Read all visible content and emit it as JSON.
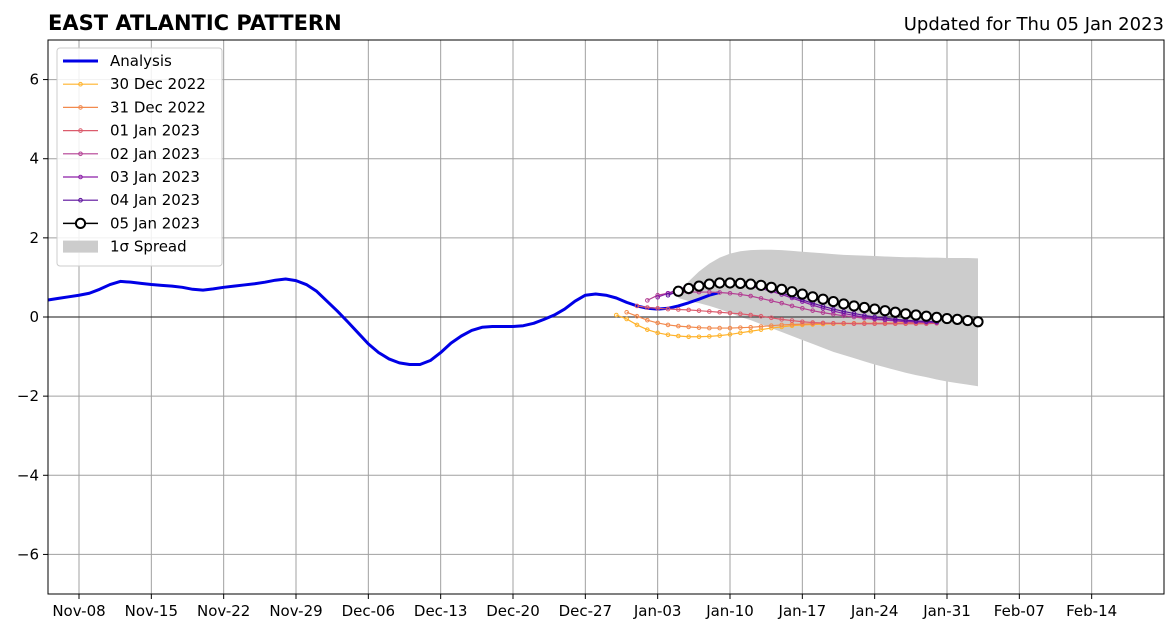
{
  "chart_data": {
    "type": "line",
    "title": "EAST ATLANTIC PATTERN",
    "subtitle": "Updated for Thu 05 Jan 2023",
    "xlabel": "",
    "ylabel": "",
    "x_start": "2022-11-05",
    "xlim": [
      "2022-11-05",
      "2023-02-21"
    ],
    "ylim": [
      -7,
      7
    ],
    "grid": true,
    "legend_position": "top-left",
    "x_ticks": [
      {
        "date": "2022-11-08",
        "label": "Nov-08"
      },
      {
        "date": "2022-11-15",
        "label": "Nov-15"
      },
      {
        "date": "2022-11-22",
        "label": "Nov-22"
      },
      {
        "date": "2022-11-29",
        "label": "Nov-29"
      },
      {
        "date": "2022-12-06",
        "label": "Dec-06"
      },
      {
        "date": "2022-12-13",
        "label": "Dec-13"
      },
      {
        "date": "2022-12-20",
        "label": "Dec-20"
      },
      {
        "date": "2022-12-27",
        "label": "Dec-27"
      },
      {
        "date": "2023-01-03",
        "label": "Jan-03"
      },
      {
        "date": "2023-01-10",
        "label": "Jan-10"
      },
      {
        "date": "2023-01-17",
        "label": "Jan-17"
      },
      {
        "date": "2023-01-24",
        "label": "Jan-24"
      },
      {
        "date": "2023-01-31",
        "label": "Jan-31"
      },
      {
        "date": "2023-02-07",
        "label": "Feb-07"
      },
      {
        "date": "2023-02-14",
        "label": "Feb-14"
      }
    ],
    "y_ticks": [
      {
        "value": -6,
        "label": "−6"
      },
      {
        "value": -4,
        "label": "−4"
      },
      {
        "value": -2,
        "label": "−2"
      },
      {
        "value": 0,
        "label": "0"
      },
      {
        "value": 2,
        "label": "2"
      },
      {
        "value": 4,
        "label": "4"
      },
      {
        "value": 6,
        "label": "6"
      }
    ],
    "series": [
      {
        "name": "Analysis",
        "color": "#0000e6",
        "style": "line",
        "start": "2022-11-05",
        "values": [
          0.43,
          0.47,
          0.51,
          0.55,
          0.6,
          0.7,
          0.82,
          0.9,
          0.88,
          0.85,
          0.82,
          0.8,
          0.78,
          0.75,
          0.7,
          0.68,
          0.71,
          0.75,
          0.78,
          0.81,
          0.84,
          0.88,
          0.93,
          0.96,
          0.92,
          0.82,
          0.65,
          0.4,
          0.15,
          -0.12,
          -0.4,
          -0.68,
          -0.9,
          -1.06,
          -1.16,
          -1.2,
          -1.2,
          -1.1,
          -0.9,
          -0.66,
          -0.48,
          -0.34,
          -0.26,
          -0.24,
          -0.24,
          -0.24,
          -0.22,
          -0.16,
          -0.06,
          0.05,
          0.2,
          0.4,
          0.55,
          0.58,
          0.55,
          0.48,
          0.37,
          0.28,
          0.22,
          0.2,
          0.22,
          0.28,
          0.36,
          0.45,
          0.55,
          0.62
        ]
      },
      {
        "name": "30 Dec 2022",
        "color": "#ffb32b",
        "style": "dots",
        "start": "2022-12-30",
        "values": [
          0.05,
          -0.05,
          -0.2,
          -0.32,
          -0.4,
          -0.45,
          -0.48,
          -0.5,
          -0.5,
          -0.49,
          -0.47,
          -0.44,
          -0.4,
          -0.36,
          -0.32,
          -0.28,
          -0.25,
          -0.22,
          -0.2,
          -0.19,
          -0.18,
          -0.17,
          -0.17,
          -0.16,
          -0.16,
          -0.16,
          -0.16,
          -0.16,
          -0.16,
          -0.16,
          -0.15
        ]
      },
      {
        "name": "31 Dec 2022",
        "color": "#f28a4e",
        "style": "dots",
        "start": "2022-12-31",
        "values": [
          0.12,
          0.02,
          -0.08,
          -0.15,
          -0.2,
          -0.23,
          -0.25,
          -0.27,
          -0.28,
          -0.28,
          -0.28,
          -0.27,
          -0.26,
          -0.24,
          -0.22,
          -0.2,
          -0.19,
          -0.18,
          -0.17,
          -0.16,
          -0.16,
          -0.16,
          -0.16,
          -0.16,
          -0.16,
          -0.15,
          -0.15,
          -0.14,
          -0.14,
          -0.14
        ]
      },
      {
        "name": "01 Jan 2023",
        "color": "#db5b6c",
        "style": "dots",
        "start": "2023-01-01",
        "values": [
          0.28,
          0.24,
          0.22,
          0.2,
          0.19,
          0.18,
          0.16,
          0.14,
          0.12,
          0.1,
          0.08,
          0.05,
          0.02,
          -0.02,
          -0.06,
          -0.09,
          -0.12,
          -0.14,
          -0.15,
          -0.16,
          -0.16,
          -0.17,
          -0.17,
          -0.17,
          -0.17,
          -0.17,
          -0.17,
          -0.17,
          -0.17,
          -0.16
        ]
      },
      {
        "name": "02 Jan 2023",
        "color": "#b33f93",
        "style": "dots",
        "start": "2023-01-02",
        "values": [
          0.42,
          0.55,
          0.6,
          0.62,
          0.63,
          0.63,
          0.63,
          0.62,
          0.6,
          0.57,
          0.53,
          0.47,
          0.41,
          0.35,
          0.28,
          0.22,
          0.16,
          0.11,
          0.07,
          0.03,
          0.0,
          -0.03,
          -0.06,
          -0.08,
          -0.1,
          -0.12,
          -0.13,
          -0.14,
          -0.14
        ]
      },
      {
        "name": "03 Jan 2023",
        "color": "#8c1fa8",
        "style": "dots",
        "start": "2023-01-03",
        "values": [
          0.5,
          0.6,
          0.7,
          0.78,
          0.82,
          0.84,
          0.85,
          0.84,
          0.82,
          0.78,
          0.72,
          0.65,
          0.57,
          0.48,
          0.39,
          0.3,
          0.22,
          0.15,
          0.09,
          0.04,
          0.0,
          -0.04,
          -0.07,
          -0.09,
          -0.11,
          -0.12,
          -0.13,
          -0.14
        ]
      },
      {
        "name": "04 Jan 2023",
        "color": "#5a0e9c",
        "style": "dots",
        "start": "2023-01-04",
        "values": [
          0.55,
          0.65,
          0.75,
          0.83,
          0.87,
          0.88,
          0.88,
          0.86,
          0.82,
          0.76,
          0.69,
          0.61,
          0.52,
          0.43,
          0.35,
          0.27,
          0.2,
          0.14,
          0.09,
          0.04,
          0.0,
          -0.03,
          -0.06,
          -0.08,
          -0.1,
          -0.11,
          -0.12
        ]
      },
      {
        "name": "05 Jan 2023",
        "color": "#000000",
        "style": "circles",
        "start": "2023-01-05",
        "values": [
          0.65,
          0.72,
          0.78,
          0.83,
          0.86,
          0.86,
          0.85,
          0.83,
          0.8,
          0.75,
          0.7,
          0.64,
          0.58,
          0.51,
          0.45,
          0.39,
          0.33,
          0.28,
          0.24,
          0.2,
          0.16,
          0.12,
          0.08,
          0.05,
          0.02,
          -0.01,
          -0.04,
          -0.06,
          -0.09,
          -0.12
        ]
      }
    ],
    "spread": {
      "name": "1σ Spread",
      "color": "#cccccc",
      "start": "2023-01-05",
      "upper": [
        0.62,
        0.9,
        1.15,
        1.35,
        1.5,
        1.6,
        1.66,
        1.69,
        1.7,
        1.7,
        1.69,
        1.67,
        1.65,
        1.63,
        1.61,
        1.59,
        1.57,
        1.56,
        1.55,
        1.54,
        1.53,
        1.52,
        1.51,
        1.51,
        1.5,
        1.5,
        1.49,
        1.49,
        1.49,
        1.48
      ],
      "lower": [
        0.48,
        0.4,
        0.35,
        0.28,
        0.2,
        0.1,
        0.0,
        -0.08,
        -0.18,
        -0.28,
        -0.38,
        -0.48,
        -0.58,
        -0.68,
        -0.78,
        -0.88,
        -0.96,
        -1.04,
        -1.12,
        -1.2,
        -1.27,
        -1.34,
        -1.41,
        -1.47,
        -1.52,
        -1.58,
        -1.63,
        -1.67,
        -1.71,
        -1.75
      ]
    }
  }
}
